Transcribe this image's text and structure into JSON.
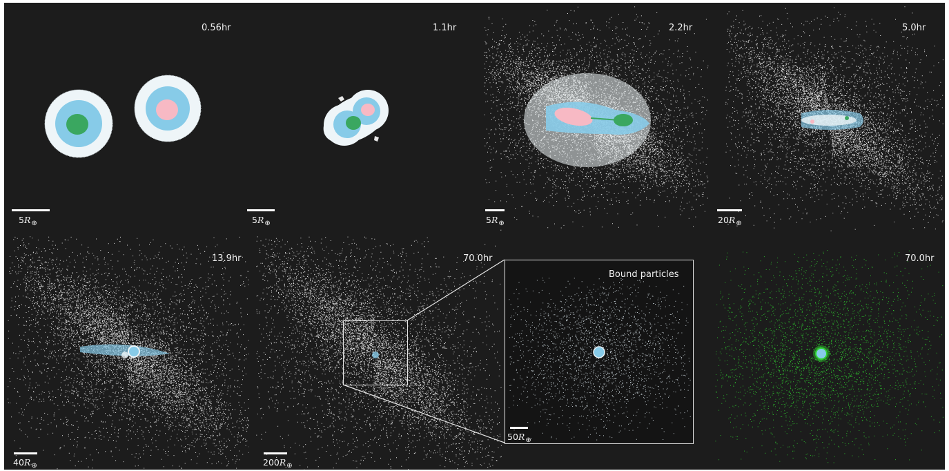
{
  "panels": [
    {
      "id": "p1",
      "time": "0.56hr",
      "scale_value": "5"
    },
    {
      "id": "p2",
      "time": "1.1hr",
      "scale_value": "5"
    },
    {
      "id": "p3",
      "time": "2.2hr",
      "scale_value": "5"
    },
    {
      "id": "p4",
      "time": "5.0hr",
      "scale_value": "20"
    },
    {
      "id": "p5",
      "time": "13.9hr",
      "scale_value": "40"
    },
    {
      "id": "p6",
      "time": "70.0hr",
      "scale_value": "200"
    },
    {
      "id": "p7",
      "title": "Bound particles",
      "scale_value": "50"
    },
    {
      "id": "p8",
      "time": "70.0hr"
    }
  ],
  "scale_symbol": "R",
  "scale_subscript": "⊕",
  "colors": {
    "background": "#1c1c1c",
    "particles": "#ffffff",
    "mantle": "#87cbe8",
    "envelope": "#eef5f8",
    "core_target": "#3aa760",
    "core_impactor": "#f7b9c4",
    "green_particles": "#2fd12f"
  }
}
